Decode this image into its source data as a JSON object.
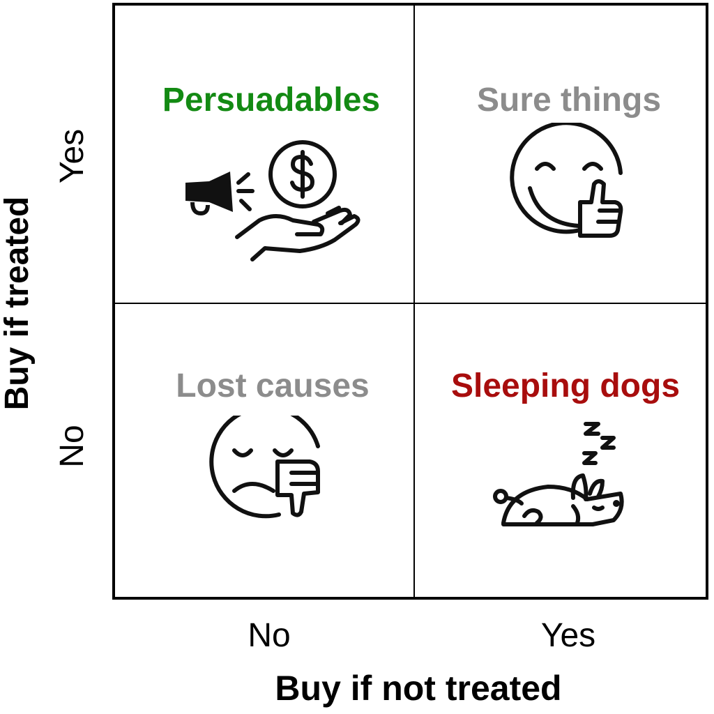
{
  "quadrants": {
    "top_left": {
      "title": "Persuadables",
      "color": "#138a13",
      "icon": "megaphone-money-hand-icon"
    },
    "top_right": {
      "title": "Sure things",
      "color": "#8c8c8c",
      "icon": "smiley-thumbs-up-icon"
    },
    "bottom_left": {
      "title": "Lost causes",
      "color": "#8c8c8c",
      "icon": "sad-face-thumbs-down-icon"
    },
    "bottom_right": {
      "title": "Sleeping dogs",
      "color": "#a80d0d",
      "icon": "sleeping-dog-icon"
    }
  },
  "axes": {
    "y_label": "Buy if treated",
    "y_ticks": {
      "top": "Yes",
      "bottom": "No"
    },
    "x_label": "Buy if not treated",
    "x_ticks": {
      "left": "No",
      "right": "Yes"
    }
  }
}
